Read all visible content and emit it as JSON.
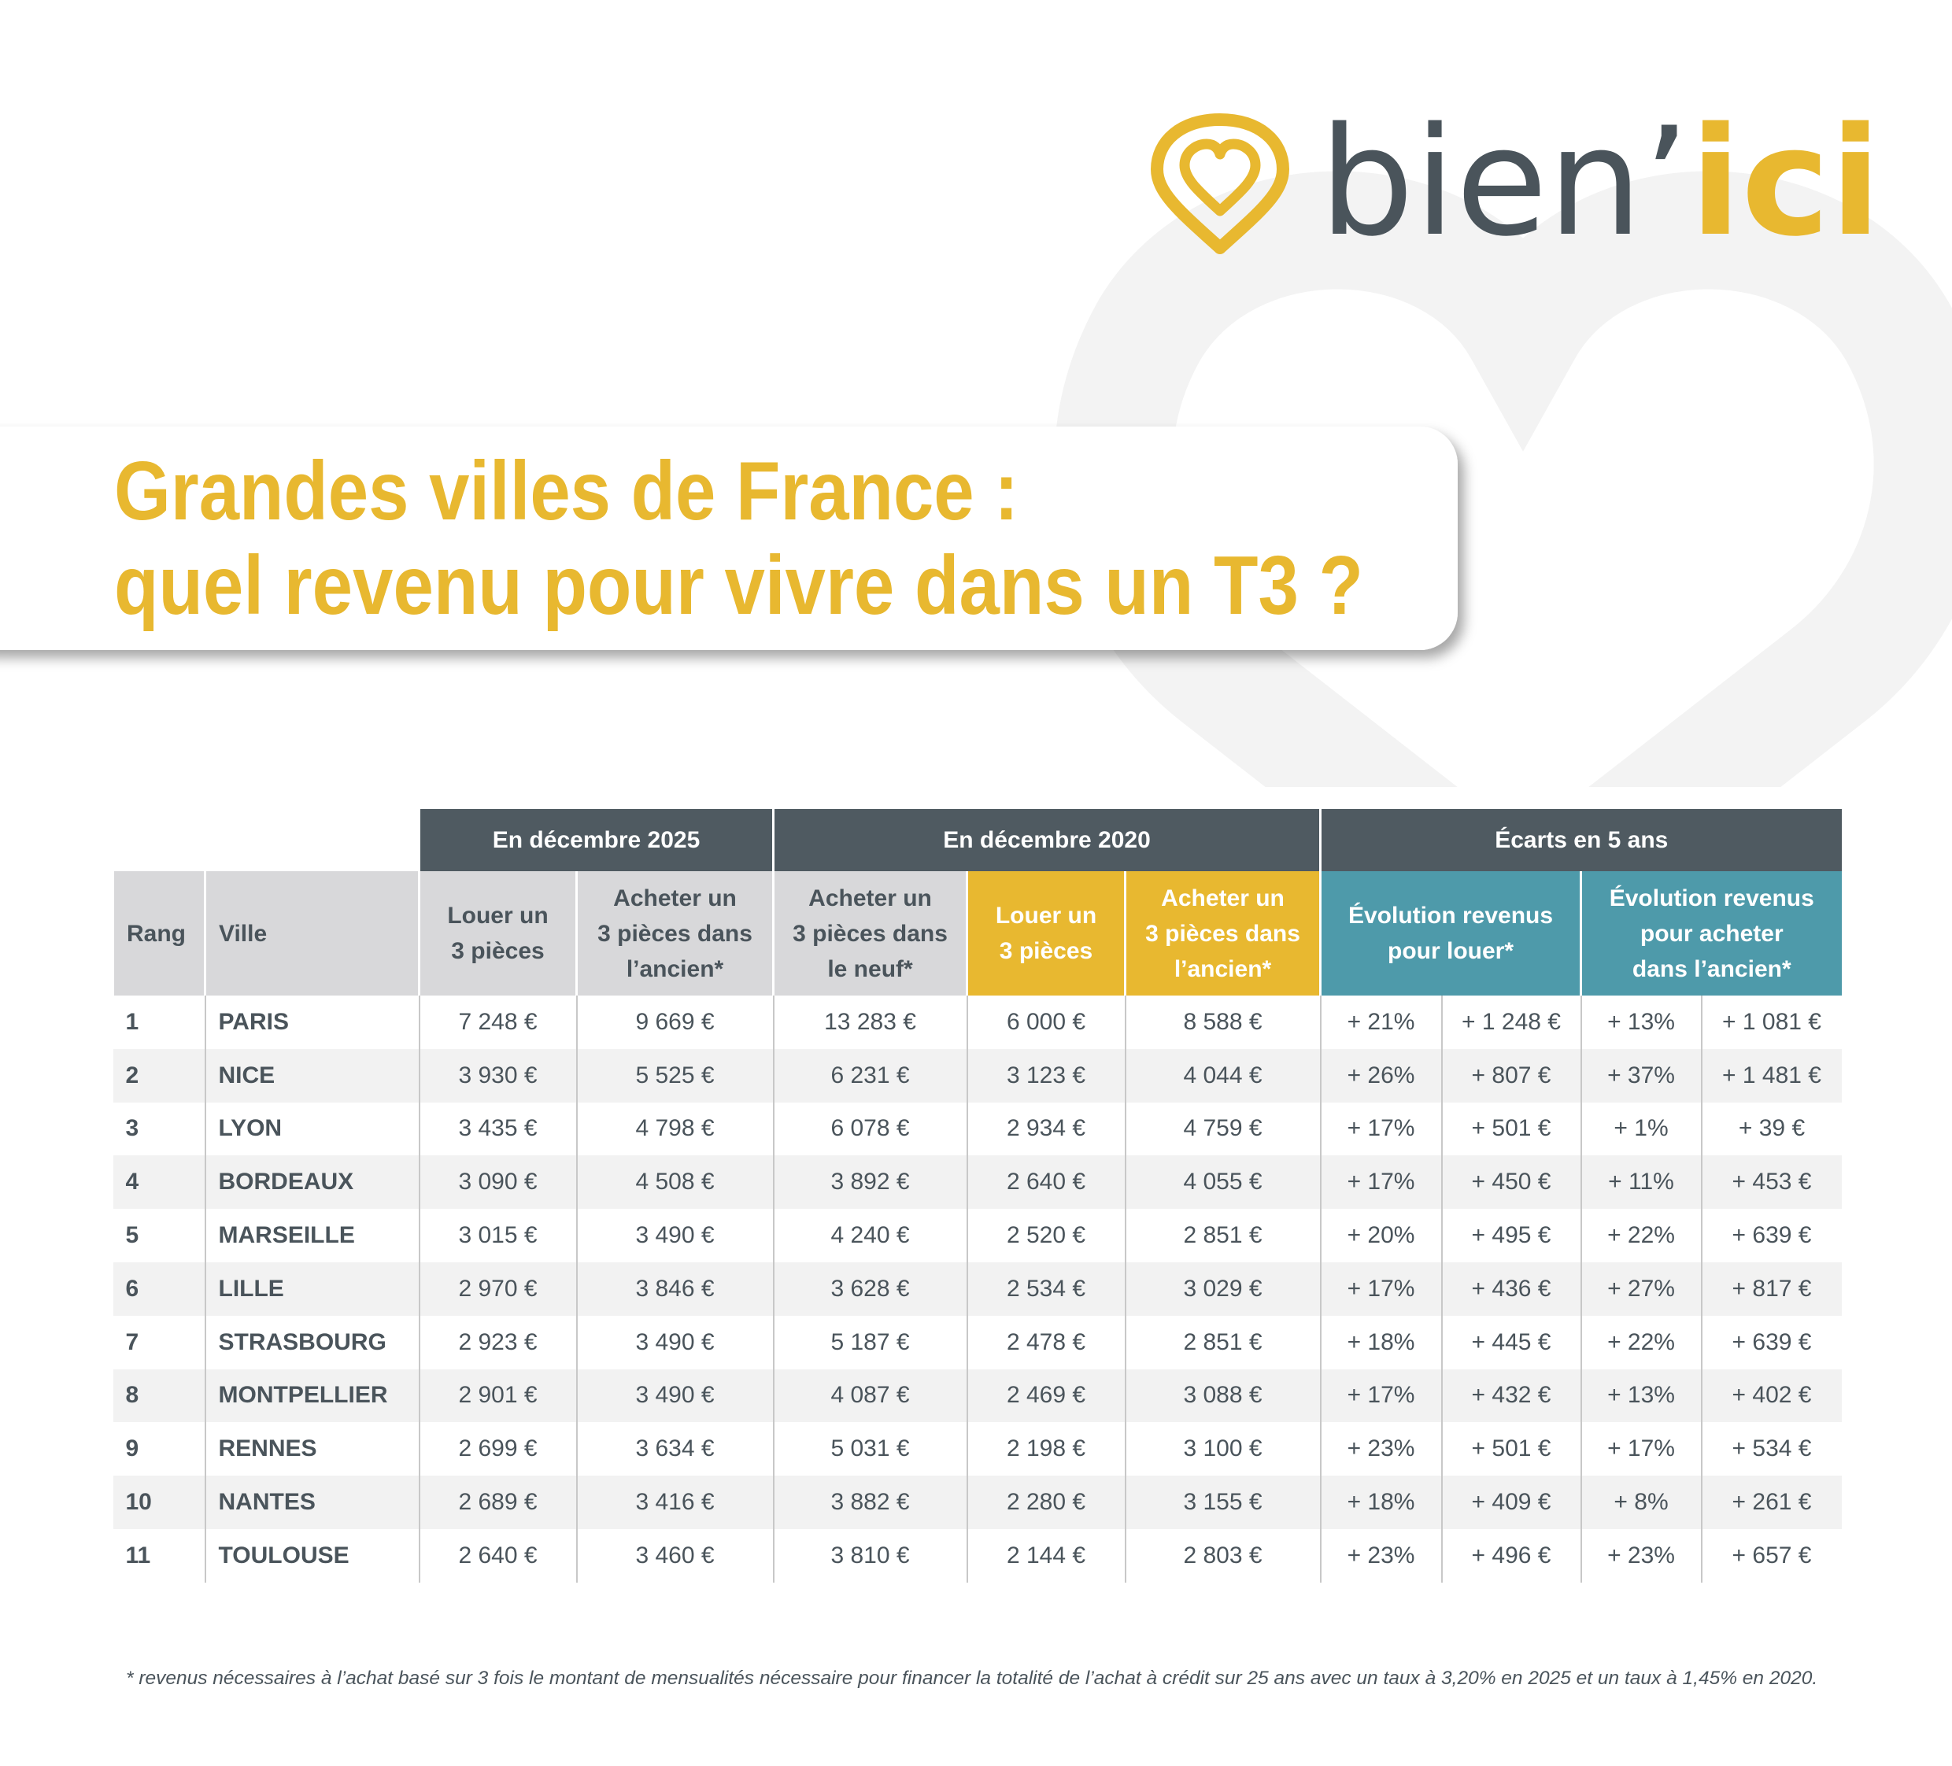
{
  "logo": {
    "name": "bien’",
    "accent": "ici"
  },
  "title": [
    "Grandes villes de France :",
    "quel revenu pour vivre dans un T3 ?"
  ],
  "table": {
    "groups": [
      "En décembre 2025",
      "En décembre 2020",
      "Écarts en 5 ans"
    ],
    "columns": [
      "Rang",
      "Ville",
      "Louer un\n3 pièces",
      "Acheter un\n3 pièces dans\nl’ancien*",
      "Acheter un\n3 pièces dans\nle neuf*",
      "Louer un\n3 pièces",
      "Acheter un\n3 pièces dans\nl’ancien*",
      "Évolution revenus\npour louer*",
      "Évolution revenus\npour acheter\ndans l’ancien*"
    ],
    "rows": [
      [
        "1",
        "PARIS",
        "7 248 €",
        "9 669 €",
        "13 283 €",
        "6 000 €",
        "8 588 €",
        "+ 21%",
        "+ 1 248 €",
        "+ 13%",
        "+ 1 081 €"
      ],
      [
        "2",
        "NICE",
        "3 930 €",
        "5 525 €",
        "6 231 €",
        "3 123 €",
        "4 044 €",
        "+ 26%",
        "+ 807 €",
        "+ 37%",
        "+ 1 481 €"
      ],
      [
        "3",
        "LYON",
        "3 435 €",
        "4 798 €",
        "6 078 €",
        "2 934 €",
        "4 759 €",
        "+ 17%",
        "+ 501 €",
        "+ 1%",
        "+ 39 €"
      ],
      [
        "4",
        "BORDEAUX",
        "3 090 €",
        "4 508 €",
        "3 892 €",
        "2 640 €",
        "4 055 €",
        "+ 17%",
        "+ 450 €",
        "+ 11%",
        "+ 453 €"
      ],
      [
        "5",
        "MARSEILLE",
        "3 015 €",
        "3 490 €",
        "4 240 €",
        "2 520 €",
        "2 851 €",
        "+ 20%",
        "+ 495 €",
        "+ 22%",
        "+ 639 €"
      ],
      [
        "6",
        "LILLE",
        "2 970 €",
        "3 846 €",
        "3 628 €",
        "2 534 €",
        "3 029 €",
        "+ 17%",
        "+ 436 €",
        "+ 27%",
        "+ 817 €"
      ],
      [
        "7",
        "STRASBOURG",
        "2 923 €",
        "3 490 €",
        "5 187 €",
        "2 478 €",
        "2 851 €",
        "+ 18%",
        "+ 445 €",
        "+ 22%",
        "+ 639 €"
      ],
      [
        "8",
        "MONTPELLIER",
        "2 901 €",
        "3 490 €",
        "4 087 €",
        "2 469 €",
        "3 088 €",
        "+ 17%",
        "+ 432 €",
        "+ 13%",
        "+ 402 €"
      ],
      [
        "9",
        "RENNES",
        "2 699 €",
        "3 634 €",
        "5 031 €",
        "2 198 €",
        "3 100 €",
        "+ 23%",
        "+ 501 €",
        "+ 17%",
        "+ 534 €"
      ],
      [
        "10",
        "NANTES",
        "2 689 €",
        "3 416 €",
        "3 882 €",
        "2 280 €",
        "3 155 €",
        "+ 18%",
        "+ 409 €",
        "+ 8%",
        "+ 261 €"
      ],
      [
        "11",
        "TOULOUSE",
        "2 640 €",
        "3 460 €",
        "3 810 €",
        "2 144 €",
        "2 803 €",
        "+ 23%",
        "+ 496 €",
        "+ 23%",
        "+ 657 €"
      ]
    ]
  },
  "footnote": "* revenus nécessaires à l’achat basé sur 3 fois le montant de mensualités nécessaire pour financer la totalité de l’achat à crédit sur 25 ans avec un taux à 3,20% en 2025 et un taux à 1,45% en 2020."
}
